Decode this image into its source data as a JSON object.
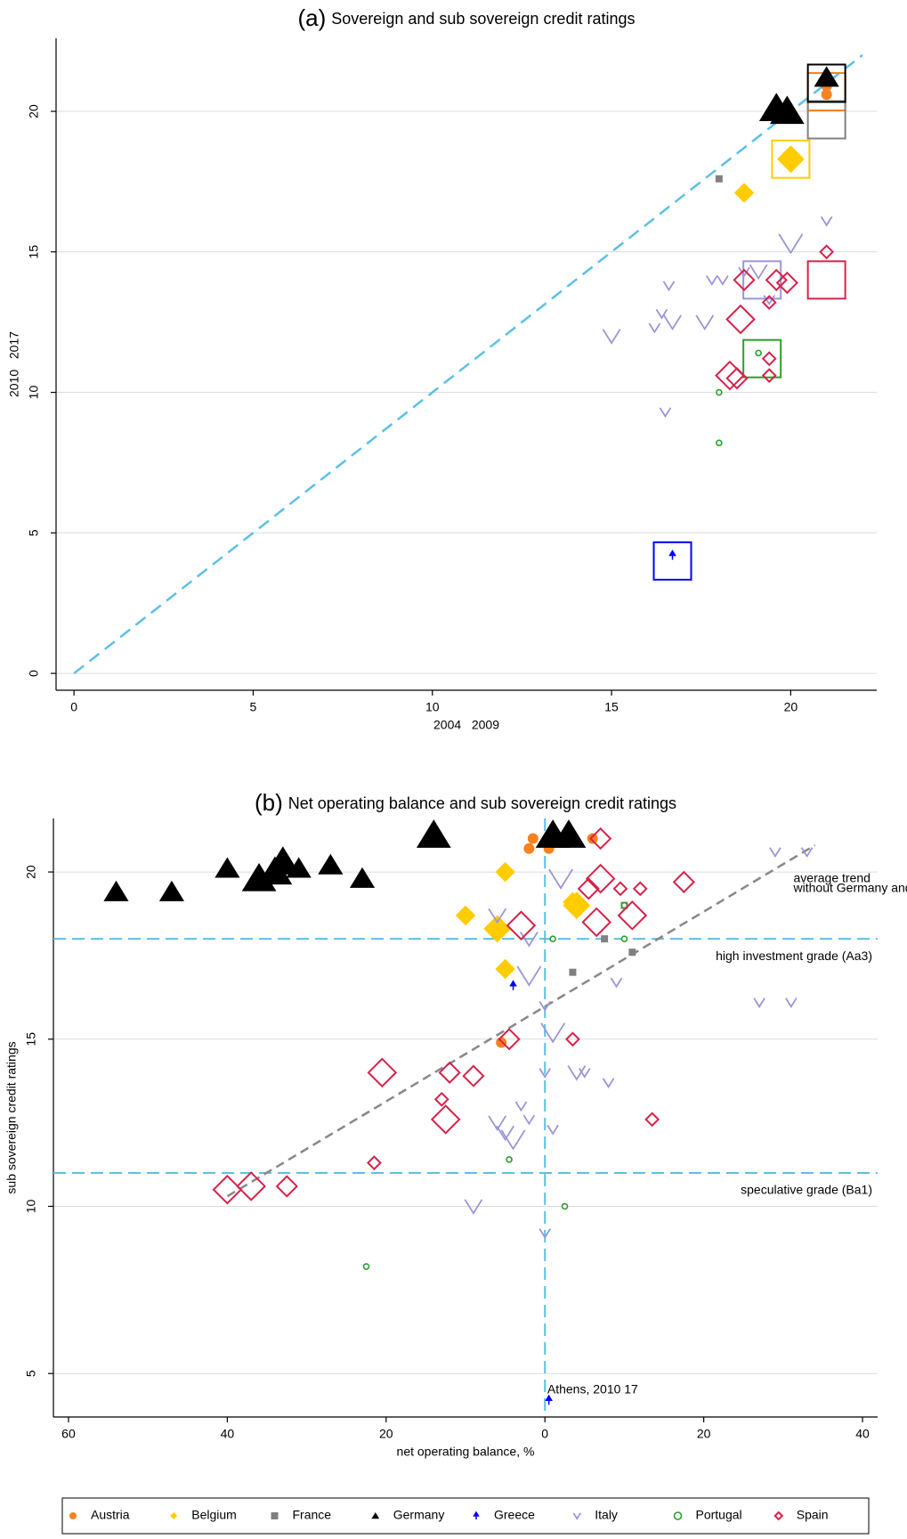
{
  "chart_data": [
    {
      "type": "scatter",
      "panel": "(a)",
      "title": "Sovereign and sub  sovereign credit ratings",
      "x_label": "2004   2009",
      "y_label": "2010   2017",
      "xlim": [
        -0.5,
        22.4
      ],
      "ylim": [
        -0.6,
        22.6
      ],
      "xticks": [
        0,
        5,
        10,
        15,
        20
      ],
      "yticks": [
        0,
        5,
        10,
        15,
        20
      ],
      "grid": true,
      "diagonal": {
        "x": [
          0,
          22
        ],
        "y": [
          0,
          22
        ],
        "color": "#5bc0e8"
      },
      "series": [
        {
          "name": "Austria",
          "color": "#f5821f",
          "marker": "circle",
          "x": [
            21,
            21
          ],
          "values": [
            20.9,
            20.6
          ],
          "sizes": [
            1,
            1
          ],
          "sovereign": {
            "x": 21,
            "y": 20.7
          }
        },
        {
          "name": "Belgium",
          "color": "#ffcc00",
          "marker": "diamond",
          "x": [
            18.7,
            20
          ],
          "values": [
            17.1,
            18.3
          ],
          "sizes": [
            2,
            3
          ],
          "sovereign": {
            "x": 20,
            "y": 18.3
          }
        },
        {
          "name": "France",
          "color": "#808080",
          "marker": "square",
          "x": [
            18
          ],
          "values": [
            17.6
          ],
          "sizes": [
            1
          ],
          "sovereign": {
            "x": 21,
            "y": 19.7
          }
        },
        {
          "name": "Germany",
          "color": "#000000",
          "marker": "triangle",
          "x": [
            19.6,
            19.9,
            21
          ],
          "values": [
            20.1,
            20,
            21.2
          ],
          "sizes": [
            3,
            3,
            2
          ],
          "sovereign": {
            "x": 21,
            "y": 21
          }
        },
        {
          "name": "Greece",
          "color": "#0000ff",
          "marker": "arrow",
          "x": [
            16.7
          ],
          "values": [
            4.2
          ],
          "sizes": [
            1
          ],
          "sovereign": {
            "x": 16.7,
            "y": 4
          }
        },
        {
          "name": "Italy",
          "color": "#9b95d9",
          "marker": "v",
          "x": [
            15,
            16.2,
            16.4,
            16.7,
            17.6,
            16.6,
            17.8,
            18.1,
            18.7,
            19.1,
            20,
            21,
            16.5,
            19.4
          ],
          "values": [
            12,
            12.3,
            12.8,
            12.5,
            12.5,
            13.8,
            14,
            14,
            14.3,
            14.3,
            15.3,
            16.1,
            9.3,
            13.3
          ],
          "sizes": [
            2,
            1,
            1,
            2,
            2,
            1,
            1,
            1,
            1,
            2,
            3,
            1,
            1,
            1
          ],
          "sovereign": {
            "x": 19.2,
            "y": 14
          }
        },
        {
          "name": "Portugal",
          "color": "#2ca02c",
          "marker": "ring",
          "x": [
            18,
            18,
            19.1
          ],
          "values": [
            10,
            8.2,
            11.4
          ],
          "sizes": [
            1,
            1,
            1
          ],
          "sovereign": {
            "x": 19.2,
            "y": 11.2
          }
        },
        {
          "name": "Spain",
          "color": "#d6224a",
          "marker": "diamond-hollow",
          "x": [
            18.7,
            19.4,
            19.6,
            19.9,
            18.6,
            18.3,
            18.5,
            19.4,
            19.4,
            21
          ],
          "values": [
            14,
            13.2,
            14,
            13.9,
            12.6,
            10.6,
            10.5,
            11.2,
            10.6,
            15
          ],
          "sizes": [
            2,
            1,
            2,
            2,
            3,
            3,
            2,
            1,
            1,
            1
          ],
          "sovereign": {
            "x": 21,
            "y": 14
          }
        }
      ]
    },
    {
      "type": "scatter",
      "panel": "(b)",
      "title": "Net operating balance and sub  sovereign credit ratings",
      "x_label": "net operating balance, %",
      "y_label": "sub sovereign credit ratings",
      "xlim": [
        -61.9,
        41.9
      ],
      "ylim": [
        3.7,
        21.6
      ],
      "xticks": [
        {
          "value": -60,
          "label": "60"
        },
        {
          "value": -40,
          "label": "40"
        },
        {
          "value": -20,
          "label": "20"
        },
        0,
        20,
        40
      ],
      "yticks": [
        5,
        10,
        15,
        20
      ],
      "grid": true,
      "hlines": [
        {
          "value": 18,
          "label": "high investment grade (Aa3)"
        },
        {
          "value": 11,
          "label": "speculative grade (Ba1)"
        }
      ],
      "vlines": [
        0
      ],
      "ref_color": "#5bc0e8",
      "trend": {
        "x": [
          -40,
          34
        ],
        "y": [
          10.3,
          20.8
        ],
        "color": "#888888",
        "label": [
          "average trend",
          "without Germany and Greece"
        ]
      },
      "annotations": [
        {
          "text": "Athens, 2010  17",
          "x": 0.3,
          "y": 4.5,
          "color": "#0000ff"
        }
      ],
      "series": [
        {
          "name": "Austria",
          "color": "#f5821f",
          "marker": "circle",
          "x": [
            -1.5,
            -2,
            0.5,
            6,
            -5.5
          ],
          "values": [
            21,
            20.7,
            20.7,
            21,
            14.9
          ],
          "sizes": [
            1,
            1,
            1,
            1,
            1
          ]
        },
        {
          "name": "Belgium",
          "color": "#ffcc00",
          "marker": "diamond",
          "x": [
            -10,
            -6,
            -5,
            -5,
            4,
            3.5
          ],
          "values": [
            18.7,
            18.3,
            17.1,
            20,
            19,
            19.1
          ],
          "sizes": [
            2,
            3,
            2,
            2,
            3,
            2
          ]
        },
        {
          "name": "France",
          "color": "#808080",
          "marker": "square",
          "x": [
            7.5,
            3.5,
            11,
            10
          ],
          "values": [
            18,
            17,
            17.6,
            19
          ],
          "sizes": [
            1,
            1,
            1,
            1
          ]
        },
        {
          "name": "Germany",
          "color": "#000000",
          "marker": "triangle",
          "x": [
            -54,
            -47,
            -40,
            -36,
            -34,
            -33,
            -31,
            -27,
            -23,
            -14,
            1,
            3
          ],
          "values": [
            19.4,
            19.4,
            20.1,
            19.8,
            20,
            20.3,
            20.1,
            20.2,
            19.8,
            21.1,
            21.1,
            21.1
          ],
          "sizes": [
            2,
            2,
            2,
            3,
            3,
            3,
            2,
            2,
            2,
            3,
            3,
            3
          ]
        },
        {
          "name": "Greece",
          "color": "#0000ff",
          "marker": "arrow",
          "x": [
            -4,
            0.5
          ],
          "values": [
            16.6,
            4.2
          ],
          "sizes": [
            1,
            1
          ]
        },
        {
          "name": "Italy",
          "color": "#9b95d9",
          "marker": "v",
          "x": [
            -6,
            -2,
            -2,
            2,
            0,
            1,
            -6,
            -5,
            -4,
            -9,
            0,
            4,
            5,
            8,
            9,
            27,
            31,
            29,
            33,
            0,
            -3,
            -2,
            1
          ],
          "values": [
            18.7,
            18,
            16.9,
            19.8,
            16,
            15.2,
            12.5,
            12.2,
            12,
            10,
            9.2,
            14,
            14,
            13.7,
            16.7,
            16.1,
            16.1,
            20.6,
            20.6,
            14,
            13,
            12.6,
            12.3
          ],
          "sizes": [
            2,
            2,
            3,
            3,
            1,
            3,
            2,
            2,
            3,
            2,
            1,
            2,
            1,
            1,
            1,
            1,
            1,
            1,
            1,
            1,
            1,
            1,
            1
          ]
        },
        {
          "name": "Portugal",
          "color": "#2ca02c",
          "marker": "ring",
          "x": [
            -22.5,
            -4.5,
            2.5,
            1,
            10,
            10
          ],
          "values": [
            8.2,
            11.4,
            10,
            18,
            18,
            19
          ],
          "sizes": [
            1,
            1,
            1,
            1,
            1,
            1
          ]
        },
        {
          "name": "Spain",
          "color": "#d6224a",
          "marker": "diamond-hollow",
          "x": [
            -40,
            -37,
            -32.5,
            -21.5,
            -20.5,
            -12.5,
            -13,
            -12,
            -9,
            -3,
            -4.5,
            3.5,
            5.5,
            7,
            6.5,
            9.5,
            11,
            12,
            17.5,
            13.5,
            7
          ],
          "values": [
            10.5,
            10.6,
            10.6,
            11.3,
            14,
            12.6,
            13.2,
            14,
            13.9,
            18.4,
            15,
            15,
            19.5,
            19.8,
            18.5,
            19.5,
            18.7,
            19.5,
            19.7,
            12.6,
            21
          ],
          "sizes": [
            3,
            3,
            2,
            1,
            3,
            3,
            1,
            2,
            2,
            3,
            2,
            1,
            2,
            3,
            3,
            1,
            3,
            1,
            2,
            1,
            2
          ]
        }
      ]
    }
  ]
}
